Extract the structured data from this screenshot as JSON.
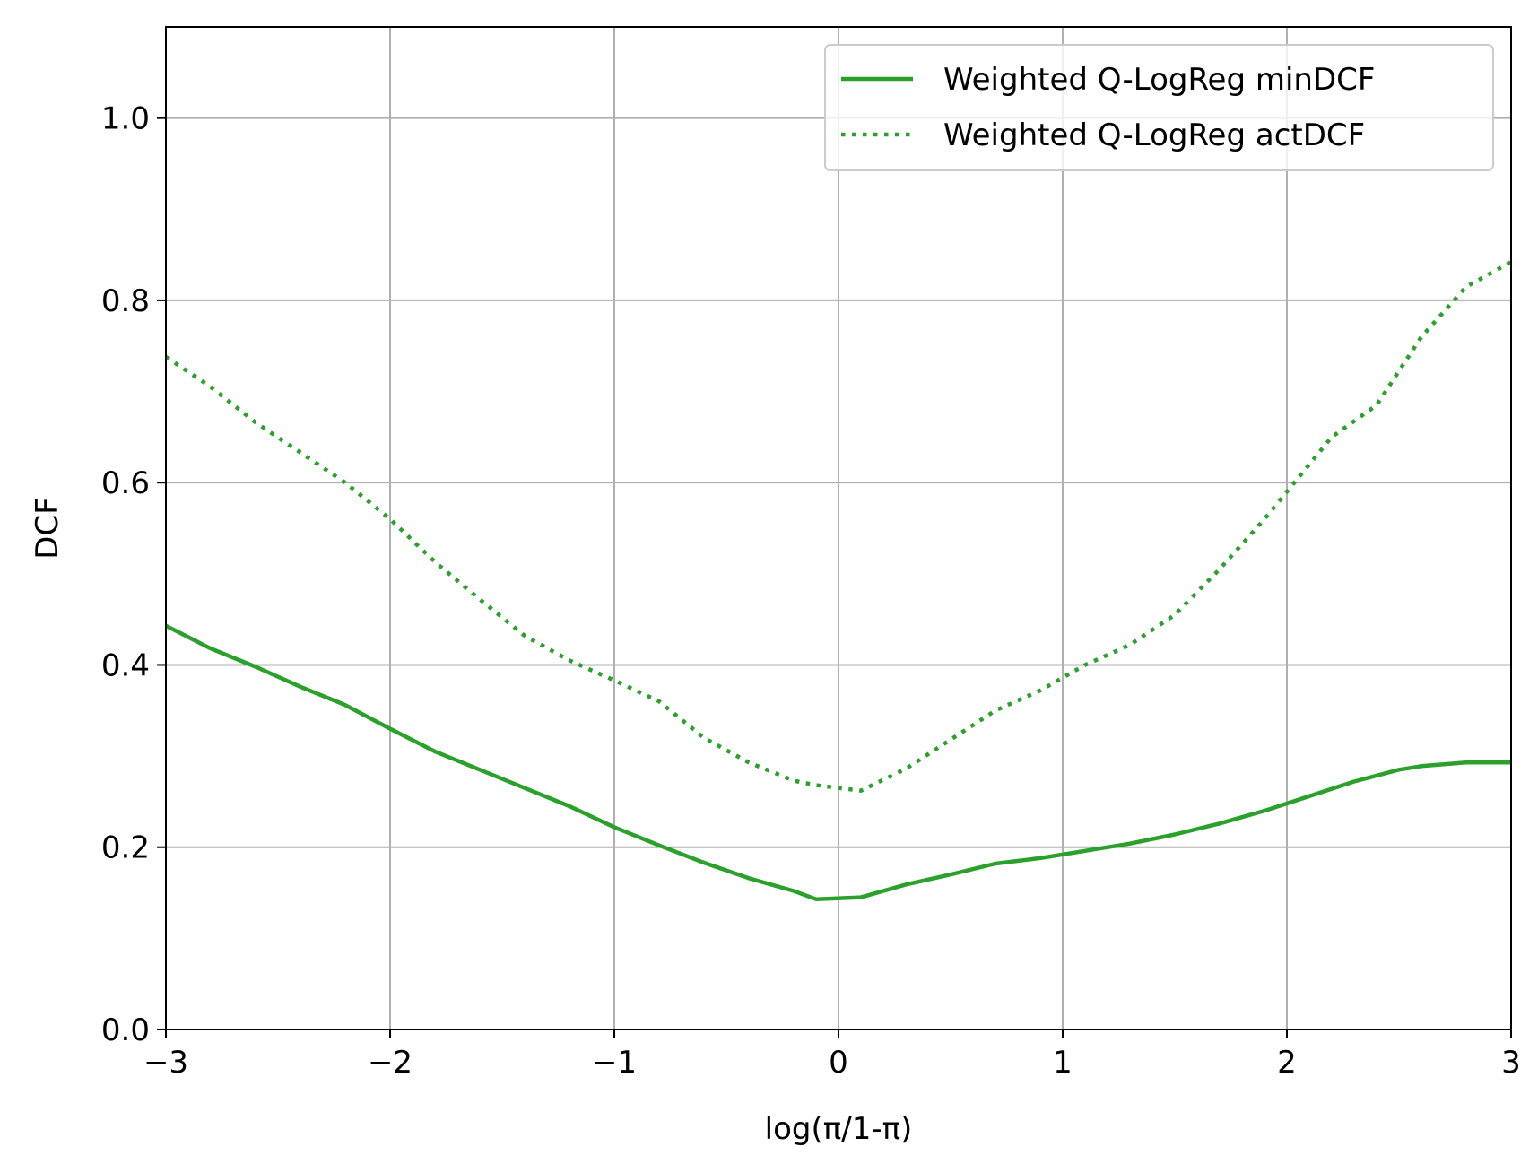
{
  "chart_data": {
    "type": "line",
    "title": "",
    "xlabel": "log(π/1-π)",
    "ylabel": "DCF",
    "xlim": [
      -3,
      3
    ],
    "ylim": [
      0,
      1.1
    ],
    "xticks": [
      -3,
      -2,
      -1,
      0,
      1,
      2,
      3
    ],
    "xtick_labels": [
      "−3",
      "−2",
      "−1",
      "0",
      "1",
      "2",
      "3"
    ],
    "yticks": [
      0,
      0.2,
      0.4,
      0.6,
      0.8,
      1.0
    ],
    "ytick_labels": [
      "0.0",
      "0.2",
      "0.4",
      "0.6",
      "0.8",
      "1.0"
    ],
    "grid": true,
    "legend_position": "top-right",
    "series": [
      {
        "name": "Weighted Q-LogReg minDCF",
        "style": "solid",
        "color": "#2ca02c",
        "x": [
          -3.0,
          -2.8,
          -2.6,
          -2.4,
          -2.2,
          -2.0,
          -1.8,
          -1.6,
          -1.4,
          -1.2,
          -1.0,
          -0.8,
          -0.6,
          -0.4,
          -0.2,
          -0.1,
          0.1,
          0.3,
          0.5,
          0.7,
          0.9,
          1.1,
          1.3,
          1.5,
          1.7,
          1.9,
          2.1,
          2.3,
          2.5,
          2.6,
          2.8,
          3.0
        ],
        "y": [
          0.443,
          0.418,
          0.398,
          0.376,
          0.356,
          0.33,
          0.305,
          0.285,
          0.265,
          0.245,
          0.222,
          0.202,
          0.183,
          0.166,
          0.152,
          0.143,
          0.145,
          0.159,
          0.17,
          0.182,
          0.188,
          0.196,
          0.204,
          0.214,
          0.226,
          0.24,
          0.256,
          0.272,
          0.285,
          0.289,
          0.293,
          0.293
        ]
      },
      {
        "name": "Weighted Q-LogReg actDCF",
        "style": "dotted",
        "color": "#2ca02c",
        "x": [
          -3.0,
          -2.8,
          -2.6,
          -2.4,
          -2.2,
          -2.0,
          -1.8,
          -1.6,
          -1.4,
          -1.2,
          -1.0,
          -0.8,
          -0.6,
          -0.4,
          -0.2,
          -0.1,
          0.1,
          0.3,
          0.5,
          0.7,
          0.9,
          1.1,
          1.3,
          1.5,
          1.7,
          1.9,
          2.0,
          2.2,
          2.4,
          2.6,
          2.8,
          3.0
        ],
        "y": [
          0.738,
          0.705,
          0.666,
          0.633,
          0.6,
          0.56,
          0.513,
          0.472,
          0.432,
          0.405,
          0.383,
          0.36,
          0.32,
          0.293,
          0.273,
          0.268,
          0.262,
          0.286,
          0.318,
          0.35,
          0.372,
          0.4,
          0.422,
          0.455,
          0.505,
          0.56,
          0.59,
          0.65,
          0.685,
          0.76,
          0.815,
          0.842
        ]
      }
    ]
  }
}
